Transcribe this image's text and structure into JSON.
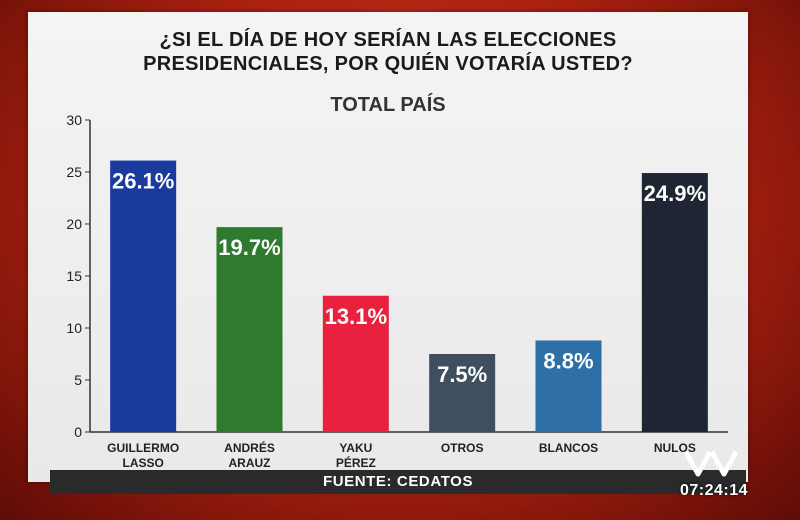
{
  "chart_data": {
    "type": "bar",
    "title": "¿SI EL DÍA DE HOY SERÍAN LAS ELECCIONES\nPRESIDENCIALES, POR QUIÉN VOTARÍA USTED?",
    "subtitle": "TOTAL PAÍS",
    "categories": [
      "GUILLERMO\nLASSO",
      "ANDRÉS\nARAUZ",
      "YAKU\nPÉREZ",
      "OTROS",
      "BLANCOS",
      "NULOS"
    ],
    "values": [
      26.1,
      19.7,
      13.1,
      7.5,
      8.8,
      24.9
    ],
    "value_labels": [
      "26.1%",
      "19.7%",
      "13.1%",
      "7.5%",
      "8.8%",
      "24.9%"
    ],
    "colors": [
      "#1b3a9e",
      "#2f7a2f",
      "#e8223e",
      "#3f4f5f",
      "#2e6fa6",
      "#1f2633"
    ],
    "yticks": [
      "0",
      "5",
      "10",
      "15",
      "20",
      "25",
      "30"
    ],
    "ylim": [
      0,
      30
    ],
    "legend": "none",
    "grid": false
  },
  "footer": {
    "source": "FUENTE: CEDATOS",
    "clock": "07:24:14"
  }
}
